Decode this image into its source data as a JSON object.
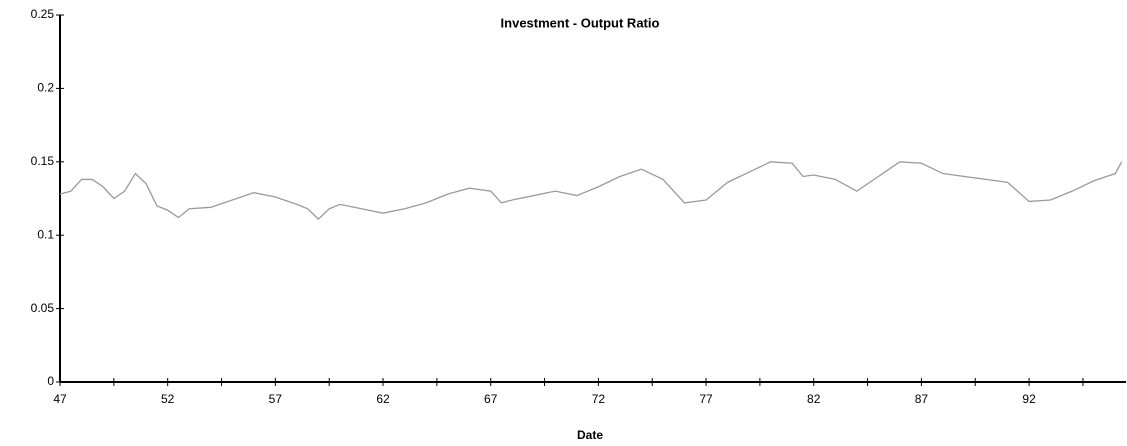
{
  "chart_data": {
    "type": "line",
    "title": "Investment - Output Ratio",
    "xlabel": "Date",
    "x": [
      47,
      47.5,
      48,
      48.5,
      49,
      49.5,
      50,
      50.5,
      51,
      51.5,
      52,
      52.5,
      53,
      54,
      55,
      56,
      57,
      58,
      58.5,
      59,
      59.5,
      60,
      61,
      62,
      63,
      64,
      65,
      66,
      67,
      67.5,
      68,
      69,
      70,
      71,
      72,
      73,
      74,
      75,
      76,
      77,
      78,
      79,
      80,
      81,
      81.5,
      82,
      83,
      84,
      85,
      86,
      87,
      88,
      89,
      90,
      91,
      92,
      93,
      94,
      95,
      96,
      96.3
    ],
    "series": [
      {
        "name": "Investment - Output Ratio",
        "color": "#9a9a9a",
        "values": [
          0.128,
          0.13,
          0.138,
          0.138,
          0.133,
          0.125,
          0.13,
          0.142,
          0.135,
          0.12,
          0.117,
          0.112,
          0.118,
          0.119,
          0.124,
          0.129,
          0.126,
          0.121,
          0.118,
          0.111,
          0.118,
          0.121,
          0.118,
          0.115,
          0.118,
          0.122,
          0.128,
          0.132,
          0.13,
          0.122,
          0.124,
          0.127,
          0.13,
          0.127,
          0.133,
          0.14,
          0.145,
          0.138,
          0.122,
          0.124,
          0.136,
          0.143,
          0.15,
          0.149,
          0.14,
          0.141,
          0.138,
          0.13,
          0.14,
          0.15,
          0.149,
          0.142,
          0.14,
          0.138,
          0.136,
          0.123,
          0.124,
          0.13,
          0.137,
          0.142,
          0.15
        ]
      }
    ],
    "xlim": [
      47,
      96.5
    ],
    "xticks": [
      47,
      52,
      57,
      62,
      67,
      72,
      77,
      82,
      87,
      92
    ],
    "xminorticks": [
      49.5,
      54.5,
      59.5,
      64.5,
      69.5,
      74.5,
      79.5,
      84.5,
      89.5,
      94.5
    ],
    "ylim": [
      0,
      0.25
    ],
    "yticks": [
      0,
      0.05,
      0.1,
      0.15,
      0.2,
      0.25
    ],
    "grid": false
  }
}
